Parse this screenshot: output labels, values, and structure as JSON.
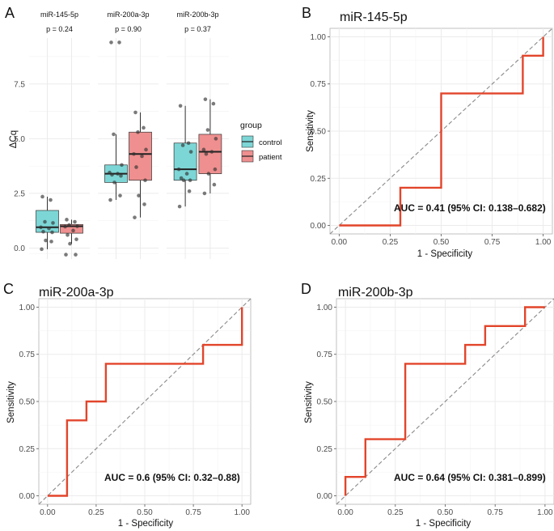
{
  "panel_letters": {
    "a": "A",
    "b": "B",
    "c": "C",
    "d": "D"
  },
  "colors": {
    "control": "#7dd6d6",
    "patient": "#ef8f8f",
    "roc": "#e2452b",
    "grid": "#ebebeb",
    "diag": "#8a8a8a"
  },
  "chart_data": [
    {
      "type": "box",
      "panel": "A",
      "ylabel": "ΔCq",
      "ylim": [
        -0.5,
        9.6
      ],
      "yticks": [
        "0.0",
        "2.5",
        "5.0",
        "7.5"
      ],
      "facets": [
        {
          "strip": "miR-145-5p",
          "p": "p = 0.24",
          "control": {
            "q1": 0.72,
            "median": 0.95,
            "q3": 1.72,
            "lo": -0.05,
            "hi": 2.35,
            "points": [
              2.35,
              2.2,
              1.2,
              1.15,
              0.95,
              0.9,
              0.75,
              0.72,
              0.35,
              0.3,
              -0.05
            ]
          },
          "patient": {
            "q1": 0.68,
            "median": 1.0,
            "q3": 1.08,
            "lo": 0.2,
            "hi": 1.3,
            "points": [
              1.3,
              1.2,
              1.05,
              1.0,
              0.98,
              0.8,
              0.6,
              0.4,
              0.2,
              -0.3,
              -0.3
            ]
          }
        },
        {
          "strip": "miR-200a-3p",
          "p": "p = 0.90",
          "control": {
            "q1": 3.0,
            "median": 3.4,
            "q3": 3.8,
            "lo": 2.2,
            "hi": 5.2,
            "points": [
              9.4,
              9.4,
              5.2,
              3.8,
              3.45,
              3.4,
              3.35,
              3.3,
              3.0,
              2.4,
              2.2
            ]
          },
          "patient": {
            "q1": 3.1,
            "median": 4.3,
            "q3": 5.3,
            "lo": 1.4,
            "hi": 6.2,
            "points": [
              6.2,
              5.5,
              5.3,
              4.5,
              4.3,
              4.2,
              3.7,
              3.1,
              2.4,
              2.0,
              1.4
            ]
          }
        },
        {
          "strip": "miR-200b-3p",
          "p": "p = 0.37",
          "control": {
            "q1": 3.1,
            "median": 3.6,
            "q3": 4.8,
            "lo": 1.9,
            "hi": 6.5,
            "points": [
              6.5,
              4.8,
              4.7,
              4.4,
              3.6,
              3.4,
              3.2,
              3.1,
              3.1,
              2.6,
              1.9
            ]
          },
          "patient": {
            "q1": 3.4,
            "median": 4.4,
            "q3": 5.2,
            "lo": 2.5,
            "hi": 6.8,
            "points": [
              6.8,
              6.6,
              5.4,
              5.0,
              4.5,
              4.4,
              4.3,
              3.6,
              3.4,
              2.9,
              2.5
            ]
          }
        }
      ],
      "legend": {
        "title": "group",
        "items": [
          "control",
          "patient"
        ]
      }
    },
    {
      "type": "line",
      "panel": "B",
      "title": "miR-145-5p",
      "xlabel": "1 - Specificity",
      "ylabel": "Sensitivity",
      "xlim": [
        0,
        1
      ],
      "ylim": [
        0,
        1
      ],
      "ticks": [
        "0.00",
        "0.25",
        "0.50",
        "0.75",
        "1.00"
      ],
      "x": [
        0,
        0.3,
        0.3,
        0.5,
        0.5,
        0.9,
        0.9,
        1.0,
        1.0
      ],
      "y": [
        0,
        0,
        0.2,
        0.2,
        0.7,
        0.7,
        0.9,
        0.9,
        1.0
      ],
      "auc": "AUC = 0.41 (95% CI: 0.138–0.682)"
    },
    {
      "type": "line",
      "panel": "C",
      "title": "miR-200a-3p",
      "xlabel": "1 - Specificity",
      "ylabel": "Sensitivity",
      "xlim": [
        0,
        1
      ],
      "ylim": [
        0,
        1
      ],
      "ticks": [
        "0.00",
        "0.25",
        "0.50",
        "0.75",
        "1.00"
      ],
      "x": [
        0,
        0.1,
        0.1,
        0.2,
        0.2,
        0.3,
        0.3,
        0.8,
        0.8,
        1.0,
        1.0
      ],
      "y": [
        0,
        0,
        0.4,
        0.4,
        0.5,
        0.5,
        0.7,
        0.7,
        0.8,
        0.8,
        1.0
      ],
      "auc": "AUC = 0.6 (95% CI: 0.32–0.88)"
    },
    {
      "type": "line",
      "panel": "D",
      "title": "miR-200b-3p",
      "xlabel": "1 - Specificity",
      "ylabel": "Sensitivity",
      "xlim": [
        0,
        1
      ],
      "ylim": [
        0,
        1
      ],
      "ticks": [
        "0.00",
        "0.25",
        "0.50",
        "0.75",
        "1.00"
      ],
      "x": [
        0,
        0,
        0.1,
        0.1,
        0.3,
        0.3,
        0.6,
        0.6,
        0.7,
        0.7,
        0.9,
        0.9,
        1.0
      ],
      "y": [
        0,
        0.1,
        0.1,
        0.3,
        0.3,
        0.7,
        0.7,
        0.8,
        0.8,
        0.9,
        0.9,
        1.0,
        1.0
      ],
      "auc": "AUC = 0.64 (95% CI: 0.381–0.899)"
    }
  ]
}
